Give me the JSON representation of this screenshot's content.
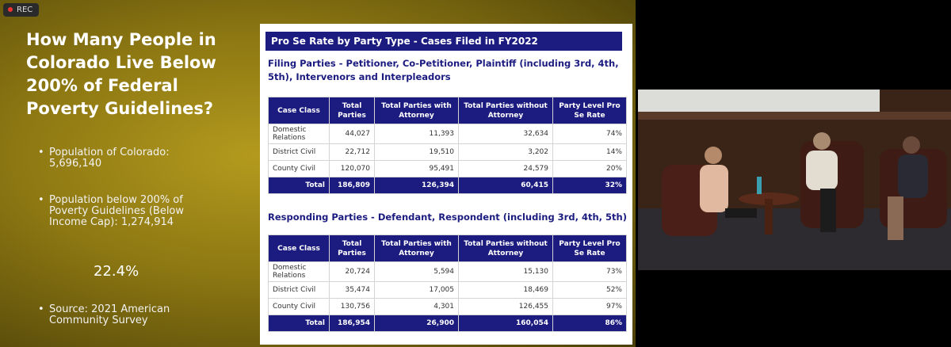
{
  "recording": "REC",
  "slide": {
    "title": "How Many People in Colorado Live Below 200% of Federal Poverty Guidelines?",
    "bullets": [
      "Population of Colorado: 5,696,140",
      "Population below 200% of Poverty Guidelines (Below Income Cap): 1,274,914"
    ],
    "highlight": "22.4%",
    "source": "Source: 2021 American Community Survey"
  },
  "panel": {
    "title": "Pro Se Rate by Party Type - Cases Filed in FY2022",
    "tables": [
      {
        "heading": "Filing Parties - Petitioner, Co-Petitioner, Plaintiff (including 3rd, 4th, 5th), Intervenors and Interpleadors",
        "columns": [
          "Case Class",
          "Total Parties",
          "Total Parties with Attorney",
          "Total Parties without Attorney",
          "Party Level Pro Se Rate"
        ],
        "rows": [
          [
            "Domestic Relations",
            "44,027",
            "11,393",
            "32,634",
            "74%"
          ],
          [
            "District Civil",
            "22,712",
            "19,510",
            "3,202",
            "14%"
          ],
          [
            "County Civil",
            "120,070",
            "95,491",
            "24,579",
            "20%"
          ]
        ],
        "total": [
          "Total",
          "186,809",
          "126,394",
          "60,415",
          "32%"
        ]
      },
      {
        "heading": "Responding Parties - Defendant, Respondent (including 3rd, 4th, 5th)",
        "columns": [
          "Case Class",
          "Total Parties",
          "Total Parties with Attorney",
          "Total Parties without Attorney",
          "Party Level Pro Se Rate"
        ],
        "rows": [
          [
            "Domestic Relations",
            "20,724",
            "5,594",
            "15,130",
            "73%"
          ],
          [
            "District Civil",
            "35,474",
            "17,005",
            "18,469",
            "52%"
          ],
          [
            "County Civil",
            "130,756",
            "4,301",
            "126,455",
            "97%"
          ]
        ],
        "total": [
          "Total",
          "186,954",
          "26,900",
          "160,054",
          "86%"
        ]
      }
    ]
  }
}
